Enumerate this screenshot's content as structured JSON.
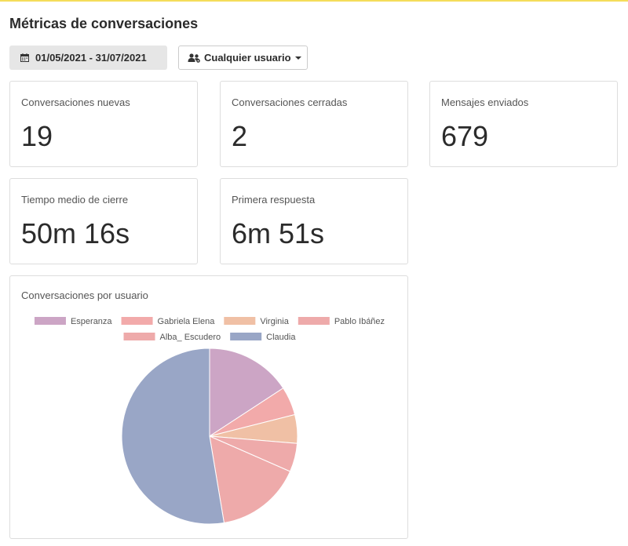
{
  "page": {
    "title": "Métricas de conversaciones"
  },
  "filters": {
    "date_range": "01/05/2021 - 31/07/2021",
    "date_icon": "calendar-icon",
    "user_filter": "Cualquier usuario",
    "user_icon": "users-icon"
  },
  "metrics": [
    {
      "label": "Conversaciones nuevas",
      "value": "19"
    },
    {
      "label": "Conversaciones cerradas",
      "value": "2"
    },
    {
      "label": "Mensajes enviados",
      "value": "679"
    },
    {
      "label": "Tiempo medio de cierre",
      "value": "50m 16s"
    },
    {
      "label": "Primera respuesta",
      "value": "6m 51s"
    }
  ],
  "chart": {
    "title": "Conversaciones por usuario"
  },
  "chart_data": {
    "type": "pie",
    "title": "Conversaciones por usuario",
    "legend_position": "top",
    "series": [
      {
        "name": "Esperanza",
        "value": 3,
        "color": "#cca5c5"
      },
      {
        "name": "Gabriela Elena",
        "value": 1,
        "color": "#f2aaaa"
      },
      {
        "name": "Virginia",
        "value": 1,
        "color": "#f0c0a5"
      },
      {
        "name": "Pablo Ibáñez",
        "value": 1,
        "color": "#eeaaaa"
      },
      {
        "name": "Alba_ Escudero",
        "value": 3,
        "color": "#eeaaaa"
      },
      {
        "name": "Claudia",
        "value": 10,
        "color": "#99a6c6"
      }
    ]
  }
}
